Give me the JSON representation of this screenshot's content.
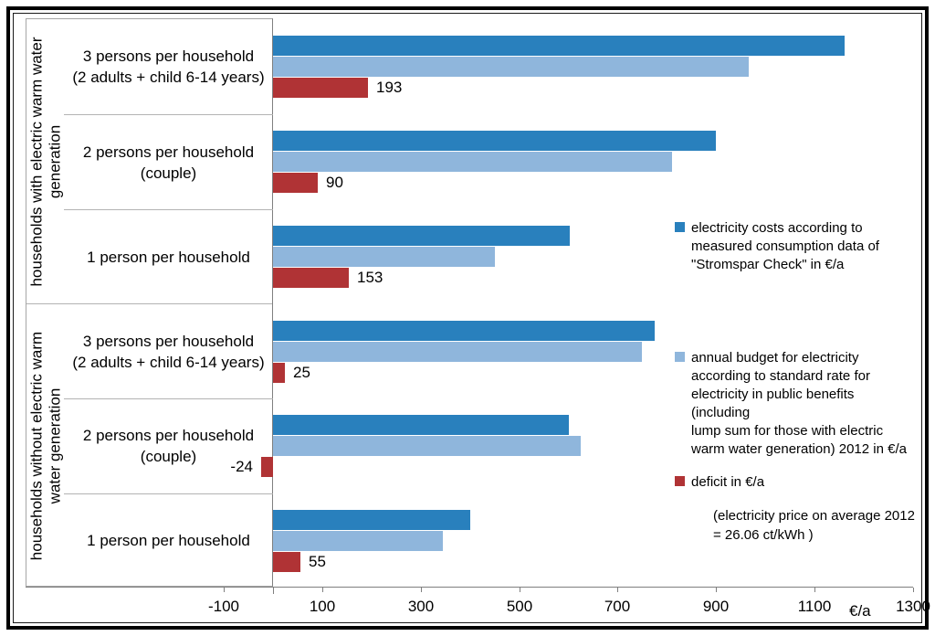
{
  "chart_data": {
    "type": "bar",
    "orientation": "horizontal",
    "x_axis": {
      "label": "€/a",
      "min": -100,
      "max": 1300,
      "ticks": [
        -100,
        100,
        300,
        500,
        700,
        900,
        1100,
        1300
      ]
    },
    "series": [
      {
        "key": "measured",
        "name": "electricity costs according to measured consumption data of \"Stromspar Check\" in €/a",
        "color": "#2980BD"
      },
      {
        "key": "budget",
        "name": "annual budget for electricity according to standard rate for electricity in public benefits (including lump sum for those with electric warm water generation) 2012 in €/a",
        "color": "#8FB6DC"
      },
      {
        "key": "deficit",
        "name": "deficit in €/a",
        "color": "#B03335"
      }
    ],
    "groups": [
      {
        "label": "households with electric warm water generation",
        "label_lines": [
          "households with electric warm water",
          "generation"
        ],
        "categories": [
          {
            "label_lines": [
              "3 persons per household",
              "(2 adults + child 6-14 years)"
            ],
            "measured": 1160,
            "budget": 967,
            "deficit": 193
          },
          {
            "label_lines": [
              "2 persons per household",
              "(couple)"
            ],
            "measured": 900,
            "budget": 810,
            "deficit": 90
          },
          {
            "label_lines": [
              "1 person per household"
            ],
            "measured": 603,
            "budget": 450,
            "deficit": 153
          }
        ]
      },
      {
        "label": "households without electric warm water generation",
        "label_lines": [
          "households without electric warm",
          "water generation"
        ],
        "categories": [
          {
            "label_lines": [
              "3 persons per household",
              "(2 adults + child 6-14 years)"
            ],
            "measured": 775,
            "budget": 750,
            "deficit": 25
          },
          {
            "label_lines": [
              "2 persons per household",
              "(couple)"
            ],
            "measured": 601,
            "budget": 625,
            "deficit": -24
          },
          {
            "label_lines": [
              "1 person per household"
            ],
            "measured": 400,
            "budget": 345,
            "deficit": 55
          }
        ]
      }
    ],
    "deficit_labels": [
      "193",
      "90",
      "153",
      "25",
      "-24",
      "55"
    ]
  },
  "legend": {
    "entries": [
      {
        "color": "#2980BD",
        "lines": [
          "electricity costs according to",
          "measured consumption data of",
          "\"Stromspar Check\" in €/a"
        ]
      },
      {
        "color": "#8FB6DC",
        "lines": [
          "annual budget for electricity",
          "according to standard rate for",
          "electricity in public benefits (including",
          "lump sum for those with electric",
          "warm water generation) 2012 in €/a"
        ]
      },
      {
        "color": "#B03335",
        "lines": [
          "deficit in €/a"
        ]
      }
    ],
    "note": [
      "(electricity price on average 2012",
      "= 26.06 ct/kWh )"
    ]
  },
  "colors": {
    "measured": "#2980BD",
    "budget": "#8FB6DC",
    "deficit": "#B03335",
    "axis_line": "#7f7f7f",
    "box_border": "#a6a6a6"
  }
}
